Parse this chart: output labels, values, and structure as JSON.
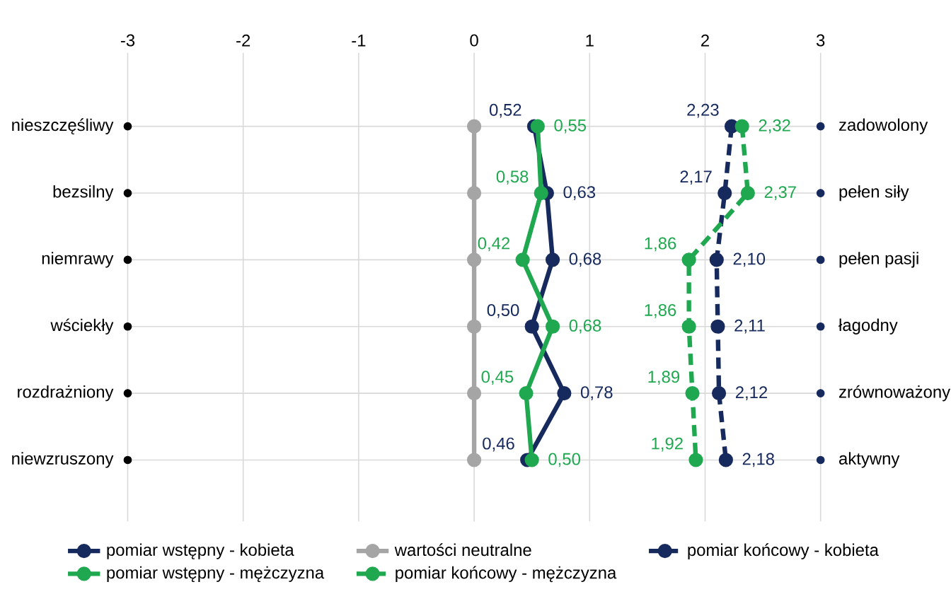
{
  "chart_data": {
    "type": "line",
    "orientation": "horizontal",
    "categories": [
      "nieszczęśliwy",
      "bezsilny",
      "niemrawy",
      "wściekły",
      "rozdrażniony",
      "niewzruszony"
    ],
    "y2_categories": [
      "zadowolony",
      "pełen siły",
      "pełen pasji",
      "łagodny",
      "zrównoważony",
      "aktywny"
    ],
    "xlim": [
      -3,
      3
    ],
    "xticks": [
      -3,
      -2,
      -1,
      0,
      1,
      2,
      3
    ],
    "grid": true,
    "legend": "bottom",
    "marker": "circle",
    "series": [
      {
        "name": "pomiar wstępny - kobieta",
        "color": "#172a5e",
        "line_style": "solid",
        "values": [
          0.52,
          0.63,
          0.68,
          0.5,
          0.78,
          0.46
        ],
        "value_labels": [
          "0,52",
          "0,63",
          "0,68",
          "0,50",
          "0,78",
          "0,46"
        ]
      },
      {
        "name": "wartości neutralne",
        "color": "#a5a5a5",
        "line_style": "solid",
        "values": [
          0,
          0,
          0,
          0,
          0,
          0
        ]
      },
      {
        "name": "pomiar końcowy - kobieta",
        "color": "#172a5e",
        "line_style": "dashed",
        "values": [
          2.23,
          2.17,
          2.1,
          2.11,
          2.12,
          2.18
        ],
        "value_labels": [
          "2,23",
          "2,17",
          "2,10",
          "2,11",
          "2,12",
          "2,18"
        ]
      },
      {
        "name": "pomiar wstępny - mężczyzna",
        "color": "#1fa84f",
        "line_style": "solid",
        "values": [
          0.55,
          0.58,
          0.42,
          0.68,
          0.45,
          0.5
        ],
        "value_labels": [
          "0,55",
          "0,58",
          "0,42",
          "0,68",
          "0,45",
          "0,50"
        ]
      },
      {
        "name": "pomiar końcowy - mężczyzna",
        "color": "#1fa84f",
        "line_style": "dashed",
        "values": [
          2.32,
          2.37,
          1.86,
          1.86,
          1.89,
          1.92
        ],
        "value_labels": [
          "2,32",
          "2,37",
          "1,86",
          "1,86",
          "1,89",
          "1,92"
        ]
      },
      {
        "type": "scatter",
        "color": "#000000",
        "values": [
          -3,
          -3,
          -3,
          -3,
          -3,
          -3
        ]
      },
      {
        "type": "scatter",
        "color": "#172a5e",
        "values": [
          3,
          3,
          3,
          3,
          3,
          3
        ]
      }
    ]
  }
}
